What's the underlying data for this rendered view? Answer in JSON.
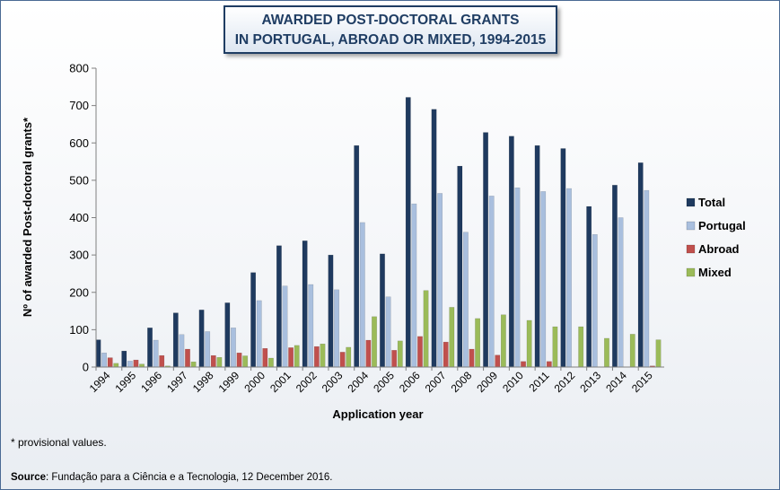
{
  "title": {
    "line1": "AWARDED POST-DOCTORAL GRANTS",
    "line2": "IN PORTUGAL, ABROAD OR MIXED, 1994-2015"
  },
  "footnote": "* provisional values.",
  "source": {
    "label": "Source",
    "text": ": Fundação para a Ciência e a Tecnologia, 12 December 2016."
  },
  "colors": {
    "total": "#1f3a5f",
    "portugal": "#a9bfde",
    "abroad": "#c0504d",
    "mixed": "#9bbb59"
  },
  "chart_data": {
    "type": "bar",
    "title": "AWARDED POST-DOCTORAL GRANTS IN PORTUGAL, ABROAD OR MIXED, 1994-2015",
    "xlabel": "Application year",
    "ylabel": "Nº of awarded Post-doctoral grants*",
    "ylim": [
      0,
      800
    ],
    "yticks": [
      0,
      100,
      200,
      300,
      400,
      500,
      600,
      700,
      800
    ],
    "grid": false,
    "legend_position": "right",
    "categories": [
      "1994",
      "1995",
      "1996",
      "1997",
      "1998",
      "1999",
      "2000",
      "2001",
      "2002",
      "2003",
      "2004",
      "2005",
      "2006",
      "2007",
      "2008",
      "2009",
      "2010",
      "2011",
      "2012",
      "2013",
      "2014",
      "2015"
    ],
    "series": [
      {
        "name": "Total",
        "color": "#1f3a5f",
        "values": [
          73,
          43,
          105,
          145,
          153,
          172,
          253,
          325,
          338,
          300,
          593,
          303,
          722,
          690,
          538,
          628,
          618,
          593,
          585,
          430,
          487,
          547
        ]
      },
      {
        "name": "Portugal",
        "color": "#a9bfde",
        "values": [
          38,
          16,
          72,
          87,
          95,
          105,
          178,
          217,
          221,
          207,
          387,
          188,
          437,
          465,
          361,
          458,
          480,
          470,
          478,
          355,
          400,
          473
        ]
      },
      {
        "name": "Abroad",
        "color": "#c0504d",
        "values": [
          25,
          19,
          31,
          48,
          31,
          38,
          50,
          52,
          55,
          40,
          72,
          45,
          82,
          67,
          48,
          32,
          15,
          15,
          0,
          0,
          0,
          3
        ]
      },
      {
        "name": "Mixed",
        "color": "#9bbb59",
        "values": [
          10,
          8,
          3,
          14,
          26,
          30,
          24,
          58,
          62,
          53,
          135,
          70,
          205,
          160,
          130,
          140,
          125,
          108,
          108,
          77,
          88,
          73
        ]
      }
    ]
  }
}
